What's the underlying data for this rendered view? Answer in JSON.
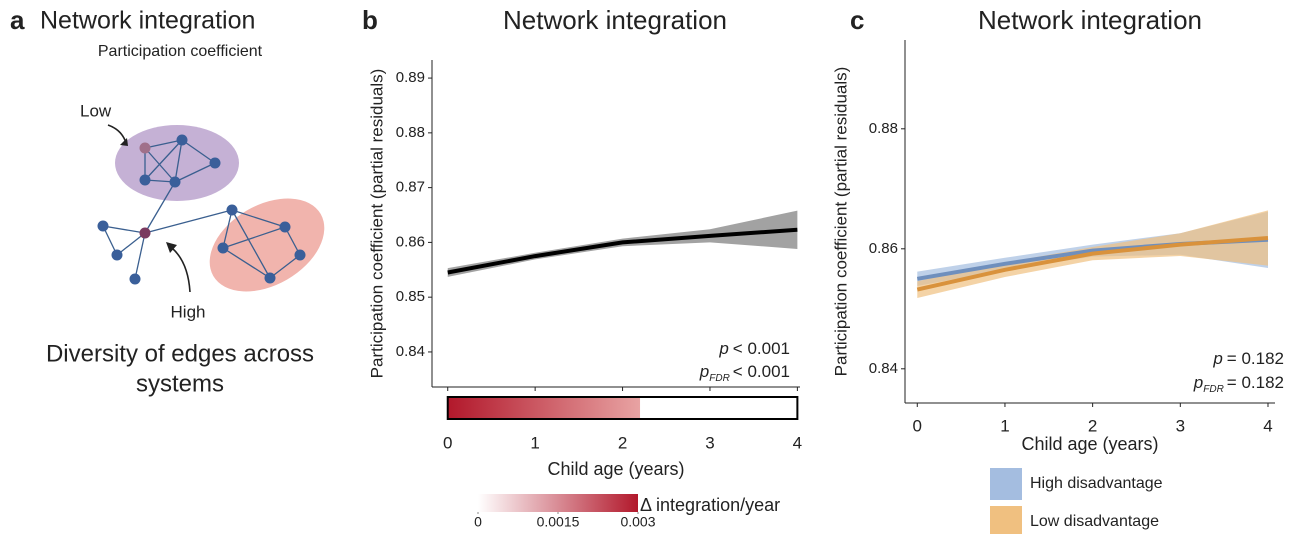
{
  "diagram": {
    "panel_label": "a",
    "title": "Network integration",
    "subtitle": "Participation coefficient",
    "low_label": "Low",
    "high_label": "High",
    "caption_lines": [
      "Diversity of edges across",
      "systems"
    ]
  },
  "chart_data": [
    {
      "type": "line",
      "panel_label": "b",
      "title": "Network integration",
      "ylabel": "Participation coefficient (partial residuals)",
      "xlabel": "Child age (years)",
      "xlim": [
        -0.18,
        4.03
      ],
      "ylim": [
        0.8336,
        0.8933
      ],
      "xticks": [
        0,
        1,
        2,
        3,
        4
      ],
      "yticks": [
        0.84,
        0.85,
        0.86,
        0.87,
        0.88,
        0.89
      ],
      "x": [
        0,
        1,
        2,
        3,
        4
      ],
      "series": [
        {
          "color": "#000000",
          "band_color": "#7a7a7a",
          "values": [
            0.8545,
            0.8575,
            0.86,
            0.8612,
            0.8623
          ],
          "lower": [
            0.8537,
            0.8569,
            0.8593,
            0.86,
            0.8588
          ],
          "upper": [
            0.8553,
            0.8581,
            0.8607,
            0.8624,
            0.8658
          ]
        }
      ],
      "annotation": {
        "p": "p",
        "p_text": "< 0.001",
        "pfdr": "p",
        "fdr": "FDR",
        "pfdr_text": "< 0.001"
      },
      "rate_bar": {
        "xlim": [
          0,
          2.2
        ],
        "colors": [
          "#b2182b",
          "#e8a3a3"
        ]
      },
      "colorbar": {
        "label": "Δ integration/year",
        "lim": [
          0,
          0.003
        ],
        "ticks": [
          0,
          0.0015,
          0.003
        ],
        "colors": [
          "#ffffff",
          "#b2182b"
        ]
      }
    },
    {
      "type": "line",
      "panel_label": "c",
      "title": "Network integration",
      "ylabel": "Participation coefficient (partial residuals)",
      "xlabel": "Child age (years)",
      "xlim": [
        -0.14,
        4.08
      ],
      "ylim": [
        0.8343,
        0.8948
      ],
      "xticks": [
        0,
        1,
        2,
        3,
        4
      ],
      "yticks": [
        0.84,
        0.86,
        0.88
      ],
      "x": [
        0,
        1,
        2,
        3,
        4
      ],
      "series": [
        {
          "name": "High disadvantage",
          "color": "#6f8fbd",
          "band_color": "#a4bde0",
          "values": [
            0.855,
            0.8575,
            0.8597,
            0.8608,
            0.8615
          ],
          "lower": [
            0.8538,
            0.8565,
            0.8587,
            0.859,
            0.8568
          ],
          "upper": [
            0.8562,
            0.8585,
            0.8607,
            0.8626,
            0.8662
          ]
        },
        {
          "name": "Low disadvantage",
          "color": "#d9923c",
          "band_color": "#f0c080",
          "values": [
            0.8532,
            0.8565,
            0.8592,
            0.8607,
            0.8618
          ],
          "lower": [
            0.8518,
            0.8553,
            0.8581,
            0.8588,
            0.8572
          ],
          "upper": [
            0.8546,
            0.8577,
            0.8603,
            0.8626,
            0.8664
          ]
        }
      ],
      "annotation": {
        "p": "p",
        "p_text": "= 0.182",
        "pfdr": "p",
        "fdr": "FDR",
        "pfdr_text": "= 0.182"
      }
    }
  ]
}
